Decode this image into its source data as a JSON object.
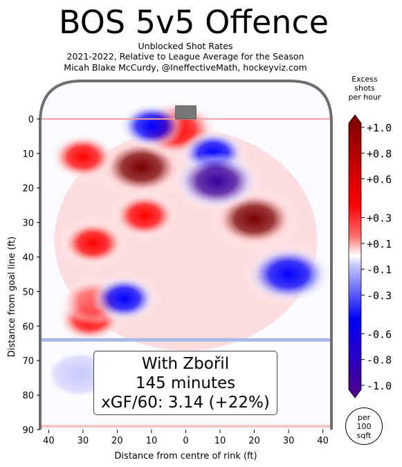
{
  "title": "BOS 5v5 Offence",
  "subtitle_lines": [
    "Unblocked Shot Rates",
    "2021-2022, Relative to League Average for the Season",
    "Micah Blake McCurdy, @IneffectiveMath, hockeyviz.com"
  ],
  "annotation": {
    "line1": "With Zbořil",
    "line2": "145 minutes",
    "line3": "xGF/60: 3.14 (+22%)"
  },
  "colorbar": {
    "title_lines": [
      "Excess",
      "shots",
      "per hour"
    ],
    "tick_labels": [
      "+1.0",
      "+0.8",
      "+0.6",
      "+0.3",
      "+0.1",
      "-0.1",
      "-0.3",
      "-0.6",
      "-0.8",
      "-1.0"
    ],
    "tick_values": [
      1.0,
      0.8,
      0.6,
      0.3,
      0.1,
      -0.1,
      -0.3,
      -0.6,
      -0.8,
      -1.0
    ],
    "units_badge": [
      "per",
      "100",
      "sqft"
    ]
  },
  "colors": {
    "strong_positive": "#7a0000",
    "positive": "#ff0000",
    "mild_positive": "#ffc6c6",
    "neutral": "#ffffff",
    "mild_negative": "#c8c8ff",
    "negative": "#0000ff",
    "strong_negative": "#3a009e",
    "boards": "#6e6e6e",
    "goal_line": "#f2a0a0",
    "blue_line": "#a8b8e8"
  },
  "chart_data": {
    "type": "heatmap",
    "title": "BOS 5v5 Offence",
    "xlabel": "Distance from centre of rink (ft)",
    "ylabel": "Distance from goal line (ft)",
    "xlim": [
      42.5,
      -42.5
    ],
    "ylim": [
      -11,
      90
    ],
    "x_ticks": [
      40,
      30,
      20,
      10,
      0,
      10,
      20,
      30,
      40
    ],
    "y_ticks": [
      0,
      10,
      20,
      30,
      40,
      50,
      60,
      70,
      80,
      90
    ],
    "value_range": [
      -1.0,
      1.0
    ],
    "hotspots": [
      {
        "x": -20,
        "y": 29,
        "value": 1.0
      },
      {
        "x": 13,
        "y": 14,
        "value": 0.95
      },
      {
        "x": 3,
        "y": 3,
        "value": 0.85
      },
      {
        "x": 30,
        "y": 11,
        "value": 0.7
      },
      {
        "x": 28,
        "y": 58,
        "value": 0.7
      },
      {
        "x": 27,
        "y": 36,
        "value": 0.6
      },
      {
        "x": 12,
        "y": 28,
        "value": 0.45
      },
      {
        "x": 27,
        "y": 53,
        "value": 0.35
      },
      {
        "x": -8,
        "y": 10,
        "value": -0.7
      },
      {
        "x": -9,
        "y": 18,
        "value": -0.9
      },
      {
        "x": 10,
        "y": 2,
        "value": -0.7
      },
      {
        "x": -30,
        "y": 45,
        "value": -0.85
      },
      {
        "x": 18,
        "y": 52,
        "value": -0.7
      },
      {
        "x": 31,
        "y": 74,
        "value": -0.3
      }
    ]
  }
}
